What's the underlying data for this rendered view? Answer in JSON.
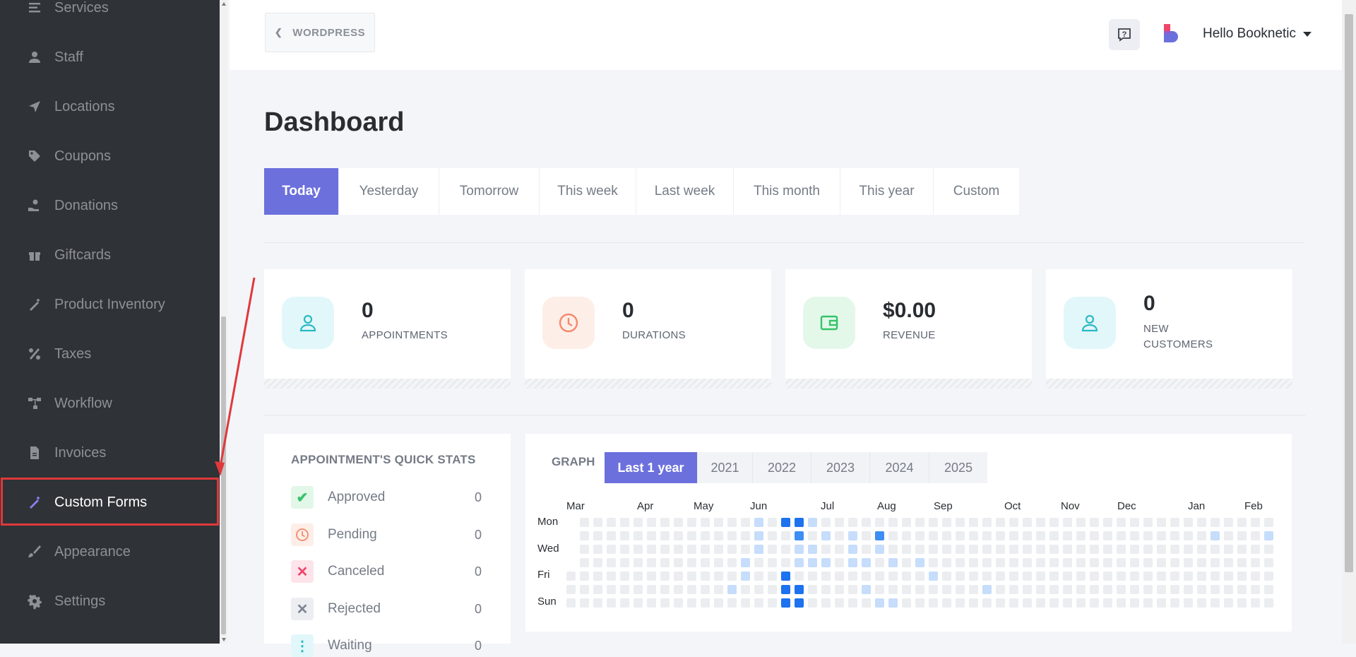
{
  "sidebar": {
    "items": [
      {
        "label": "Services",
        "icon": "list-icon"
      },
      {
        "label": "Staff",
        "icon": "user-icon"
      },
      {
        "label": "Locations",
        "icon": "location-arrow-icon"
      },
      {
        "label": "Coupons",
        "icon": "tag-icon"
      },
      {
        "label": "Donations",
        "icon": "donation-hand-icon"
      },
      {
        "label": "Giftcards",
        "icon": "gift-icon"
      },
      {
        "label": "Product Inventory",
        "icon": "magic-wand-icon"
      },
      {
        "label": "Taxes",
        "icon": "percent-icon"
      },
      {
        "label": "Workflow",
        "icon": "workflow-icon"
      },
      {
        "label": "Invoices",
        "icon": "file-icon"
      },
      {
        "label": "Custom Forms",
        "icon": "magic-wand-icon",
        "active": true
      },
      {
        "label": "Appearance",
        "icon": "brush-icon"
      },
      {
        "label": "Settings",
        "icon": "gear-icon"
      }
    ]
  },
  "topbar": {
    "back_label": "WORDPRESS",
    "user_greeting": "Hello Booknetic"
  },
  "page": {
    "title": "Dashboard"
  },
  "tabs": [
    "Today",
    "Yesterday",
    "Tomorrow",
    "This week",
    "Last week",
    "This month",
    "This year",
    "Custom"
  ],
  "active_tab": "Today",
  "stats": [
    {
      "value": "0",
      "label": "APPOINTMENTS",
      "icon": "user-icon",
      "color": "#2bb9c6"
    },
    {
      "value": "0",
      "label": "DURATIONS",
      "icon": "clock-icon",
      "color": "#f7886a"
    },
    {
      "value": "$0.00",
      "label": "REVENUE",
      "icon": "wallet-icon",
      "color": "#35c46a"
    },
    {
      "value": "0",
      "label": "NEW CUSTOMERS",
      "icon": "user-icon",
      "color": "#2bb9c6"
    }
  ],
  "quick_stats": {
    "title": "APPOINTMENT'S QUICK STATS",
    "rows": [
      {
        "label": "Approved",
        "value": "0",
        "icon": "check-icon"
      },
      {
        "label": "Pending",
        "value": "0",
        "icon": "clock-icon"
      },
      {
        "label": "Canceled",
        "value": "0",
        "icon": "close-icon"
      },
      {
        "label": "Rejected",
        "value": "0",
        "icon": "close-icon"
      },
      {
        "label": "Waiting",
        "value": "0",
        "icon": "waiting-icon"
      }
    ]
  },
  "graph": {
    "title": "GRAPH",
    "tabs": [
      "Last 1 year",
      "2021",
      "2022",
      "2023",
      "2024",
      "2025"
    ],
    "active_tab": "Last 1 year",
    "months": [
      "Mar",
      "Apr",
      "May",
      "Jun",
      "Jul",
      "Aug",
      "Sep",
      "Oct",
      "Nov",
      "Dec",
      "Jan",
      "Feb"
    ],
    "days": [
      "Mon",
      "Wed",
      "Fri",
      "Sun"
    ]
  },
  "colors": {
    "accent": "#6c70dc",
    "sidebar_bg": "#2f3236",
    "annotation_red": "#e0383b"
  }
}
